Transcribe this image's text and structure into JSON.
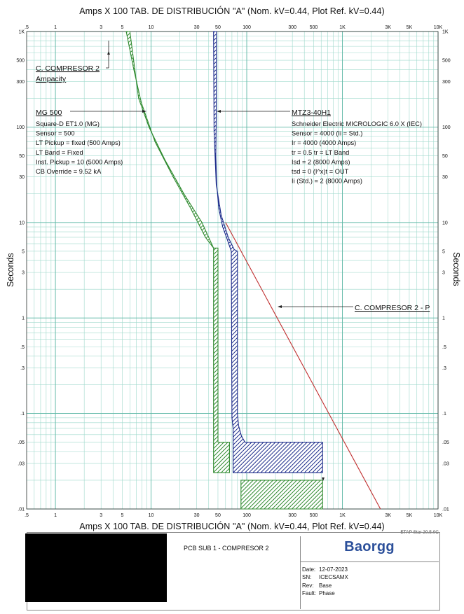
{
  "header": {
    "title_top": "Amps  X  100   TAB. DE DISTRIBUCIÓN \"A\" (Nom. kV=0.44, Plot Ref. kV=0.44)",
    "title_bottom": "Amps  X  100   TAB. DE DISTRIBUCIÓN \"A\" (Nom. kV=0.44, Plot Ref. kV=0.44)",
    "y_axis_label": "Seconds"
  },
  "chart_data": {
    "type": "line",
    "x_scale": "log",
    "y_scale": "log",
    "xlim": [
      0.5,
      10000
    ],
    "ylim": [
      0.01,
      1000
    ],
    "grid": true,
    "x_ticks": [
      {
        "v": 0.5,
        "t": ".5"
      },
      {
        "v": 1,
        "t": "1"
      },
      {
        "v": 3,
        "t": "3"
      },
      {
        "v": 5,
        "t": "5"
      },
      {
        "v": 10,
        "t": "10"
      },
      {
        "v": 30,
        "t": "30"
      },
      {
        "v": 50,
        "t": "50"
      },
      {
        "v": 100,
        "t": "100"
      },
      {
        "v": 300,
        "t": "300"
      },
      {
        "v": 500,
        "t": "500"
      },
      {
        "v": 1000,
        "t": "1K"
      },
      {
        "v": 3000,
        "t": "3K"
      },
      {
        "v": 5000,
        "t": "5K"
      },
      {
        "v": 10000,
        "t": "10K"
      }
    ],
    "y_ticks": [
      {
        "v": 0.01,
        "t": ".01"
      },
      {
        "v": 0.03,
        "t": ".03"
      },
      {
        "v": 0.05,
        "t": ".05"
      },
      {
        "v": 0.1,
        "t": ".1"
      },
      {
        "v": 0.3,
        "t": ".3"
      },
      {
        "v": 0.5,
        "t": ".5"
      },
      {
        "v": 1,
        "t": "1"
      },
      {
        "v": 3,
        "t": "3"
      },
      {
        "v": 5,
        "t": "5"
      },
      {
        "v": 10,
        "t": "10"
      },
      {
        "v": 30,
        "t": "30"
      },
      {
        "v": 50,
        "t": "50"
      },
      {
        "v": 100,
        "t": "100"
      },
      {
        "v": 300,
        "t": "300"
      },
      {
        "v": 500,
        "t": "500"
      },
      {
        "v": 1000,
        "t": "1K"
      }
    ],
    "series": [
      {
        "name": "MG 500",
        "color": "#2f8a2f",
        "pattern": "green-hatch",
        "band": [
          [
            6.0,
            1000
          ],
          [
            7.4,
            200
          ],
          [
            9.5,
            100
          ],
          [
            14,
            45
          ],
          [
            22,
            20
          ],
          [
            34,
            10
          ],
          [
            45,
            5.4
          ],
          [
            50,
            5.4
          ],
          [
            50,
            0.05
          ],
          [
            66,
            0.05
          ],
          [
            66,
            0.024
          ],
          [
            45,
            0.024
          ],
          [
            45,
            5.4
          ],
          [
            37,
            7
          ],
          [
            26,
            14
          ],
          [
            17,
            30
          ],
          [
            11,
            70
          ],
          [
            7.9,
            180
          ],
          [
            6.6,
            400
          ],
          [
            5.5,
            1000
          ]
        ],
        "extra_band": [
          [
            87,
            0.02
          ],
          [
            620,
            0.02
          ],
          [
            620,
            0.01
          ],
          [
            87,
            0.01
          ]
        ]
      },
      {
        "name": "MTZ3-40H1",
        "color": "#1b2b8a",
        "pattern": "blue-hatch",
        "band": [
          [
            45,
            1000
          ],
          [
            45.5,
            90
          ],
          [
            48,
            25
          ],
          [
            54,
            12
          ],
          [
            64,
            7
          ],
          [
            74,
            5.2
          ],
          [
            80,
            5
          ],
          [
            80,
            0.1
          ],
          [
            82,
            0.075
          ],
          [
            88,
            0.058
          ],
          [
            96,
            0.05
          ],
          [
            620,
            0.05
          ],
          [
            620,
            0.024
          ],
          [
            72,
            0.024
          ],
          [
            72,
            0.07
          ],
          [
            70,
            0.09
          ],
          [
            69,
            5
          ],
          [
            62,
            6.8
          ],
          [
            56,
            9
          ],
          [
            51,
            14
          ],
          [
            48.5,
            25
          ],
          [
            47.5,
            50
          ],
          [
            48,
            120
          ],
          [
            48.2,
            1000
          ]
        ]
      },
      {
        "name": "C. COMPRESOR 2 - P",
        "color": "#c03030",
        "points": [
          [
            60,
            10
          ],
          [
            2500,
            0.01
          ]
        ]
      }
    ],
    "annotations": [
      {
        "text": "C. COMPRESOR 2",
        "x": 0.58,
        "y": 710,
        "ref": "ampacity"
      },
      {
        "text": "Ampacity",
        "x": 0.58,
        "y": 420
      },
      {
        "text": "MG 500",
        "x": 0.58,
        "y": 135
      },
      {
        "text": "MTZ3-40H1",
        "x": 255,
        "y": 135
      },
      {
        "text": "C. COMPRESOR 2 - P",
        "x": 2600,
        "y": 1.1
      }
    ],
    "settings_left": [
      "Square-D  ET1.0 (MG)",
      "Sensor = 500",
      "LT Pickup = fixed (500 Amps)",
      "LT Band = Fixed",
      "Inst. Pickup = 10 (5000 Amps)",
      "CB Override = 9.52 kA"
    ],
    "settings_right": [
      "Schneider Electric  MICROLOGIC 6.0 X (IEC)",
      "Sensor = 4000 (Ii =  Std.)",
      "Ir = 4000 (4000 Amps)",
      "tr = 0.5  tr = LT Band",
      "Isd = 2 (8000 Amps)",
      "tsd = 0  (I^x)t = OUT",
      "Ii (Std.)  = 2 (8000 Amps)"
    ]
  },
  "title_block": {
    "etap_version": "ETAP Star 20.5.0C",
    "project": "PCB SUB 1 - COMPRESOR 2",
    "logo": "Baorgg",
    "date_label": "Date:",
    "date": "12-07-2023",
    "sn_label": "SN:",
    "sn": "ICECSAMX",
    "rev_label": "Rev:",
    "rev": "Base",
    "fault_label": "Fault:",
    "fault": "Phase"
  }
}
